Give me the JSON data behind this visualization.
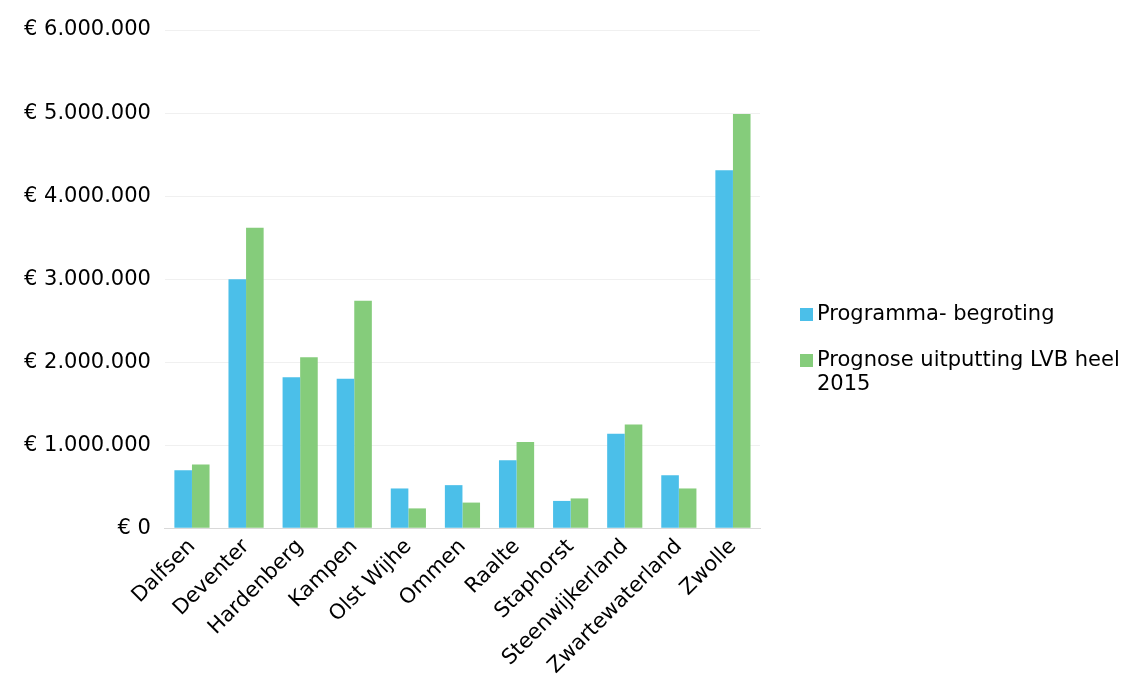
{
  "chart_data": {
    "type": "bar",
    "categories": [
      "Dalfsen",
      "Deventer",
      "Hardenberg",
      "Kampen",
      "Olst Wijhe",
      "Ommen",
      "Raalte",
      "Staphorst",
      "Steenwijkerland",
      "Zwartewaterland",
      "Zwolle"
    ],
    "series": [
      {
        "name": "Programma- begroting",
        "color": "#4bbfe9",
        "values": [
          700000,
          3000000,
          1820000,
          1800000,
          480000,
          520000,
          820000,
          330000,
          1140000,
          640000,
          4310000
        ]
      },
      {
        "name": "Prognose uitputting LVB heel 2015",
        "color": "#85cc7b",
        "values": [
          770000,
          3620000,
          2060000,
          2740000,
          240000,
          310000,
          1040000,
          360000,
          1250000,
          480000,
          4990000
        ]
      }
    ],
    "ylim": [
      0,
      6000000
    ],
    "yticks": [
      {
        "value": 0,
        "label": "€ 0"
      },
      {
        "value": 1000000,
        "label": "€ 1.000.000"
      },
      {
        "value": 2000000,
        "label": "€ 2.000.000"
      },
      {
        "value": 3000000,
        "label": "€ 3.000.000"
      },
      {
        "value": 4000000,
        "label": "€ 4.000.000"
      },
      {
        "value": 5000000,
        "label": "€ 5.000.000"
      },
      {
        "value": 6000000,
        "label": "€ 6.000.000"
      }
    ],
    "grid": "y",
    "legend": "right"
  }
}
